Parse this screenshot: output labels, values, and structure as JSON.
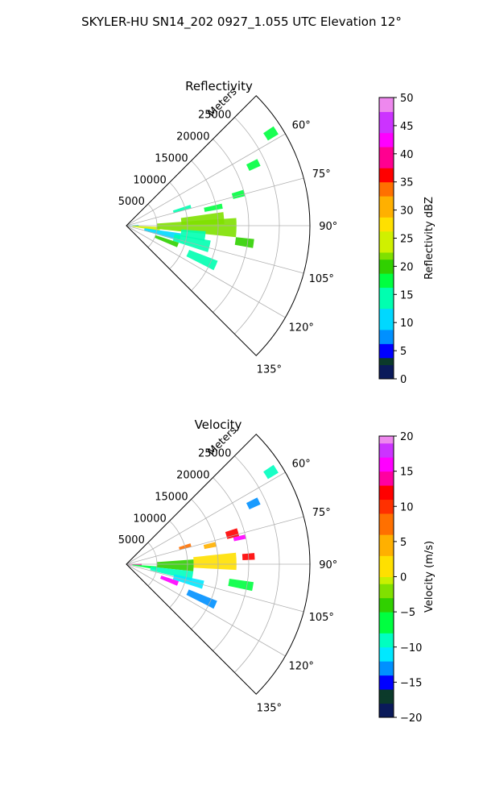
{
  "figure_title": "SKYLER-HU  SN14_202  0927_1.055 UTC Elevation 12°",
  "chart_data": [
    {
      "type": "polar-sector",
      "title": "Reflectivity",
      "radial_label": "Meters",
      "radial_ticks": [
        "5000",
        "10000",
        "15000",
        "20000",
        "25000"
      ],
      "radial_tick_values": [
        5000,
        10000,
        15000,
        20000,
        25000
      ],
      "rmax": 30000,
      "angle_range_deg": [
        45,
        135
      ],
      "angle_ticks": [
        "60°",
        "75°",
        "90°",
        "105°",
        "120°",
        "135°"
      ],
      "angle_tick_values": [
        60,
        75,
        90,
        105,
        120,
        135
      ],
      "grid": true,
      "colorbar": {
        "label": "Reflectivity dBZ",
        "min": 0,
        "max": 50,
        "ticks": [
          "0",
          "5",
          "10",
          "15",
          "20",
          "25",
          "30",
          "35",
          "40",
          "45",
          "50"
        ],
        "tick_values": [
          0,
          5,
          10,
          15,
          20,
          25,
          30,
          35,
          40,
          45,
          50
        ]
      },
      "echoes": [
        {
          "range": [
            0,
            2000
          ],
          "az": [
            86,
            94
          ],
          "value": 12
        },
        {
          "range": [
            1000,
            5500
          ],
          "az": [
            92,
            99
          ],
          "value": 23
        },
        {
          "range": [
            3000,
            9000
          ],
          "az": [
            98,
            106
          ],
          "value": 12
        },
        {
          "range": [
            5000,
            18000
          ],
          "az": [
            86,
            96
          ],
          "value": 21
        },
        {
          "range": [
            9000,
            16000
          ],
          "az": [
            82,
            89
          ],
          "value": 22
        },
        {
          "range": [
            9000,
            13000
          ],
          "az": [
            94,
            101
          ],
          "value": 14
        },
        {
          "range": [
            8000,
            14000
          ],
          "az": [
            100,
            108
          ],
          "value": 15
        },
        {
          "range": [
            5000,
            9000
          ],
          "az": [
            108,
            113
          ],
          "value": 19
        },
        {
          "range": [
            11000,
            16000
          ],
          "az": [
            111,
            117
          ],
          "value": 14
        },
        {
          "range": [
            18000,
            21000
          ],
          "az": [
            96,
            100
          ],
          "value": 19
        },
        {
          "range": [
            13000,
            16000
          ],
          "az": [
            77,
            80
          ],
          "value": 16
        },
        {
          "range": [
            8000,
            11000
          ],
          "az": [
            72,
            75
          ],
          "value": 15
        },
        {
          "range": [
            18000,
            20000
          ],
          "az": [
            73,
            76
          ],
          "value": 18
        },
        {
          "range": [
            22000,
            24000
          ],
          "az": [
            63,
            66
          ],
          "value": 18
        },
        {
          "range": [
            27000,
            29000
          ],
          "az": [
            56,
            59
          ],
          "value": 17
        }
      ]
    },
    {
      "type": "polar-sector",
      "title": "Velocity",
      "radial_label": "Meters",
      "radial_ticks": [
        "5000",
        "10000",
        "15000",
        "20000",
        "25000"
      ],
      "radial_tick_values": [
        5000,
        10000,
        15000,
        20000,
        25000
      ],
      "rmax": 30000,
      "angle_range_deg": [
        45,
        135
      ],
      "angle_ticks": [
        "60°",
        "75°",
        "90°",
        "105°",
        "120°",
        "135°"
      ],
      "angle_tick_values": [
        60,
        75,
        90,
        105,
        120,
        135
      ],
      "grid": true,
      "colorbar": {
        "label": "Velocity (m/s)",
        "min": -20,
        "max": 20,
        "ticks": [
          "−20",
          "−15",
          "−10",
          "−5",
          "0",
          "5",
          "10",
          "15",
          "20"
        ],
        "tick_values": [
          -20,
          -15,
          -10,
          -5,
          0,
          5,
          10,
          15,
          20
        ]
      },
      "echoes": [
        {
          "range": [
            0,
            2500
          ],
          "az": [
            88,
            96
          ],
          "value": 14
        },
        {
          "range": [
            1000,
            5000
          ],
          "az": [
            94,
            100
          ],
          "value": -6
        },
        {
          "range": [
            5000,
            11000
          ],
          "az": [
            86,
            96
          ],
          "value": -5
        },
        {
          "range": [
            11000,
            18000
          ],
          "az": [
            84,
            93
          ],
          "value": 0
        },
        {
          "range": [
            4000,
            11000
          ],
          "az": [
            96,
            104
          ],
          "value": -10
        },
        {
          "range": [
            8000,
            13000
          ],
          "az": [
            102,
            108
          ],
          "value": -11
        },
        {
          "range": [
            6000,
            9000
          ],
          "az": [
            108,
            113
          ],
          "value": 16
        },
        {
          "range": [
            11000,
            16000
          ],
          "az": [
            112,
            117
          ],
          "value": -14
        },
        {
          "range": [
            17000,
            21000
          ],
          "az": [
            98,
            102
          ],
          "value": -8
        },
        {
          "range": [
            9000,
            11000
          ],
          "az": [
            72,
            75
          ],
          "value": 7
        },
        {
          "range": [
            13000,
            15000
          ],
          "az": [
            76,
            79
          ],
          "value": 5
        },
        {
          "range": [
            17000,
            19000
          ],
          "az": [
            72,
            76
          ],
          "value": 12
        },
        {
          "range": [
            18000,
            20000
          ],
          "az": [
            76,
            78
          ],
          "value": 15
        },
        {
          "range": [
            19000,
            21000
          ],
          "az": [
            85,
            88
          ],
          "value": 11
        },
        {
          "range": [
            22000,
            24000
          ],
          "az": [
            63,
            66
          ],
          "value": -13
        },
        {
          "range": [
            27000,
            29000
          ],
          "az": [
            56,
            59
          ],
          "value": -10
        }
      ]
    }
  ]
}
